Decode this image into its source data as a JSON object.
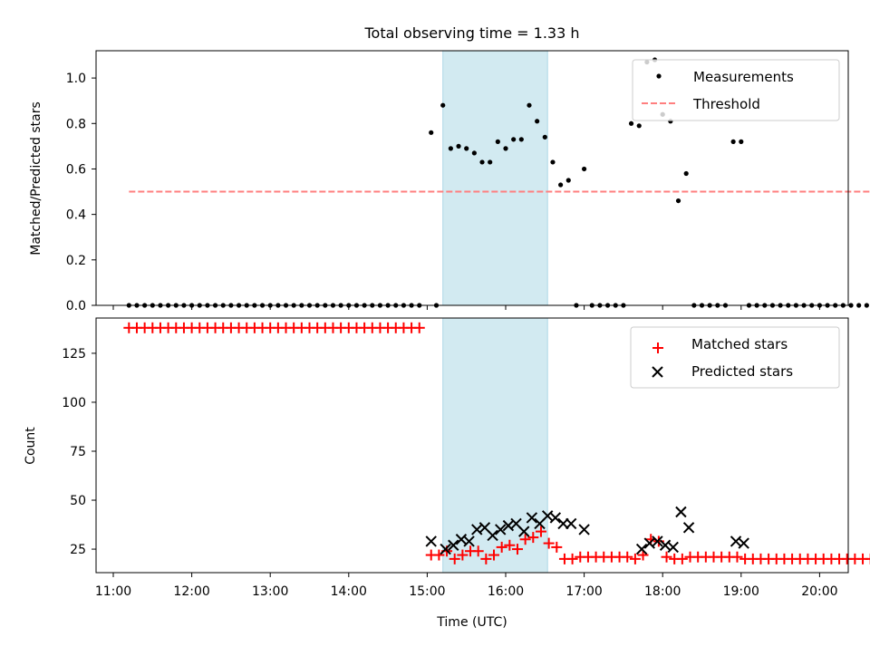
{
  "chart_data": {
    "type": "scatter",
    "title": "Total observing time = 1.33 h",
    "xlabel": "Time (UTC)",
    "x_ticks": [
      "11:00",
      "12:00",
      "13:00",
      "14:00",
      "15:00",
      "16:00",
      "17:00",
      "18:00",
      "19:00",
      "20:00"
    ],
    "shaded_region": {
      "start": "15:12",
      "end": "16:32",
      "color": "#add8e6"
    },
    "panels": [
      {
        "ylabel": "Matched/Predicted stars",
        "ylim": [
          0,
          1.12
        ],
        "y_ticks": [
          "0.0",
          "0.2",
          "0.4",
          "0.6",
          "0.8",
          "1.0"
        ],
        "legend": {
          "placement": "top-right",
          "entries": [
            "Measurements",
            "Threshold"
          ]
        },
        "series": [
          {
            "name": "Measurements",
            "marker": "dot",
            "color": "#000000",
            "values": [
              [
                "11:12",
                0
              ],
              [
                "11:18",
                0
              ],
              [
                "11:24",
                0
              ],
              [
                "11:30",
                0
              ],
              [
                "11:36",
                0
              ],
              [
                "11:42",
                0
              ],
              [
                "11:48",
                0
              ],
              [
                "11:54",
                0
              ],
              [
                "12:00",
                0
              ],
              [
                "12:06",
                0
              ],
              [
                "12:12",
                0
              ],
              [
                "12:18",
                0
              ],
              [
                "12:24",
                0
              ],
              [
                "12:30",
                0
              ],
              [
                "12:36",
                0
              ],
              [
                "12:42",
                0
              ],
              [
                "12:48",
                0
              ],
              [
                "12:54",
                0
              ],
              [
                "13:00",
                0
              ],
              [
                "13:06",
                0
              ],
              [
                "13:12",
                0
              ],
              [
                "13:18",
                0
              ],
              [
                "13:24",
                0
              ],
              [
                "13:30",
                0
              ],
              [
                "13:36",
                0
              ],
              [
                "13:42",
                0
              ],
              [
                "13:48",
                0
              ],
              [
                "13:54",
                0
              ],
              [
                "14:00",
                0
              ],
              [
                "14:06",
                0
              ],
              [
                "14:12",
                0
              ],
              [
                "14:18",
                0
              ],
              [
                "14:24",
                0
              ],
              [
                "14:30",
                0
              ],
              [
                "14:36",
                0
              ],
              [
                "14:42",
                0
              ],
              [
                "14:48",
                0
              ],
              [
                "14:54",
                0
              ],
              [
                "15:03",
                0.76
              ],
              [
                "15:07",
                0
              ],
              [
                "15:12",
                0.88
              ],
              [
                "15:18",
                0.69
              ],
              [
                "15:24",
                0.7
              ],
              [
                "15:30",
                0.69
              ],
              [
                "15:36",
                0.67
              ],
              [
                "15:42",
                0.63
              ],
              [
                "15:48",
                0.63
              ],
              [
                "15:54",
                0.72
              ],
              [
                "16:00",
                0.69
              ],
              [
                "16:06",
                0.73
              ],
              [
                "16:12",
                0.73
              ],
              [
                "16:18",
                0.88
              ],
              [
                "16:24",
                0.81
              ],
              [
                "16:30",
                0.74
              ],
              [
                "16:36",
                0.63
              ],
              [
                "16:42",
                0.53
              ],
              [
                "16:48",
                0.55
              ],
              [
                "16:54",
                0
              ],
              [
                "17:00",
                0.6
              ],
              [
                "17:06",
                0
              ],
              [
                "17:12",
                0
              ],
              [
                "17:18",
                0
              ],
              [
                "17:24",
                0
              ],
              [
                "17:30",
                0
              ],
              [
                "17:36",
                0.8
              ],
              [
                "17:42",
                0.79
              ],
              [
                "17:48",
                1.07
              ],
              [
                "17:54",
                1.08
              ],
              [
                "18:00",
                0.84
              ],
              [
                "18:06",
                0.81
              ],
              [
                "18:12",
                0.46
              ],
              [
                "18:18",
                0.58
              ],
              [
                "18:24",
                0
              ],
              [
                "18:30",
                0
              ],
              [
                "18:36",
                0
              ],
              [
                "18:42",
                0
              ],
              [
                "18:48",
                0
              ],
              [
                "18:54",
                0.72
              ],
              [
                "19:00",
                0.72
              ],
              [
                "19:06",
                0
              ],
              [
                "19:12",
                0
              ],
              [
                "19:18",
                0
              ],
              [
                "19:24",
                0
              ],
              [
                "19:30",
                0
              ],
              [
                "19:36",
                0
              ],
              [
                "19:42",
                0
              ],
              [
                "19:48",
                0
              ],
              [
                "19:54",
                0
              ],
              [
                "20:00",
                0
              ],
              [
                "20:06",
                0
              ],
              [
                "20:12",
                0
              ],
              [
                "20:18",
                0
              ],
              [
                "20:24",
                0
              ],
              [
                "20:30",
                0
              ],
              [
                "20:36",
                0
              ],
              [
                "20:42",
                0
              ],
              [
                "20:48",
                0
              ],
              [
                "20:54",
                0
              ]
            ]
          },
          {
            "name": "Threshold",
            "line": "dashed",
            "color": "#ff7f7f",
            "values": [
              [
                "11:12",
                0.5
              ],
              [
                "20:54",
                0.5
              ]
            ]
          }
        ]
      },
      {
        "ylabel": "Count",
        "ylim": [
          13,
          143
        ],
        "y_ticks": [
          "25",
          "50",
          "75",
          "100",
          "125"
        ],
        "legend": {
          "placement": "top-right",
          "entries": [
            "Matched stars",
            "Predicted stars"
          ]
        },
        "series": [
          {
            "name": "Matched stars",
            "marker": "plus",
            "color": "#ff0000",
            "values": [
              [
                "11:12",
                138
              ],
              [
                "11:18",
                138
              ],
              [
                "11:24",
                138
              ],
              [
                "11:30",
                138
              ],
              [
                "11:36",
                138
              ],
              [
                "11:42",
                138
              ],
              [
                "11:48",
                138
              ],
              [
                "11:54",
                138
              ],
              [
                "12:00",
                138
              ],
              [
                "12:06",
                138
              ],
              [
                "12:12",
                138
              ],
              [
                "12:18",
                138
              ],
              [
                "12:24",
                138
              ],
              [
                "12:30",
                138
              ],
              [
                "12:36",
                138
              ],
              [
                "12:42",
                138
              ],
              [
                "12:48",
                138
              ],
              [
                "12:54",
                138
              ],
              [
                "13:00",
                138
              ],
              [
                "13:06",
                138
              ],
              [
                "13:12",
                138
              ],
              [
                "13:18",
                138
              ],
              [
                "13:24",
                138
              ],
              [
                "13:30",
                138
              ],
              [
                "13:36",
                138
              ],
              [
                "13:42",
                138
              ],
              [
                "13:48",
                138
              ],
              [
                "13:54",
                138
              ],
              [
                "14:00",
                138
              ],
              [
                "14:06",
                138
              ],
              [
                "14:12",
                138
              ],
              [
                "14:18",
                138
              ],
              [
                "14:24",
                138
              ],
              [
                "14:30",
                138
              ],
              [
                "14:36",
                138
              ],
              [
                "14:42",
                138
              ],
              [
                "14:48",
                138
              ],
              [
                "14:54",
                138
              ],
              [
                "15:03",
                22
              ],
              [
                "15:09",
                22
              ],
              [
                "15:15",
                24
              ],
              [
                "15:21",
                20
              ],
              [
                "15:27",
                22
              ],
              [
                "15:33",
                24
              ],
              [
                "15:39",
                24
              ],
              [
                "15:45",
                20
              ],
              [
                "15:51",
                22
              ],
              [
                "15:57",
                26
              ],
              [
                "16:03",
                27
              ],
              [
                "16:09",
                25
              ],
              [
                "16:15",
                30
              ],
              [
                "16:21",
                31
              ],
              [
                "16:27",
                34
              ],
              [
                "16:33",
                28
              ],
              [
                "16:39",
                26
              ],
              [
                "16:45",
                20
              ],
              [
                "16:51",
                20
              ],
              [
                "16:57",
                21
              ],
              [
                "17:03",
                21
              ],
              [
                "17:09",
                21
              ],
              [
                "17:15",
                21
              ],
              [
                "17:21",
                21
              ],
              [
                "17:27",
                21
              ],
              [
                "17:33",
                21
              ],
              [
                "17:39",
                20
              ],
              [
                "17:45",
                22
              ],
              [
                "17:51",
                30
              ],
              [
                "17:57",
                29
              ],
              [
                "18:03",
                21
              ],
              [
                "18:09",
                20
              ],
              [
                "18:15",
                20
              ],
              [
                "18:21",
                21
              ],
              [
                "18:27",
                21
              ],
              [
                "18:33",
                21
              ],
              [
                "18:39",
                21
              ],
              [
                "18:45",
                21
              ],
              [
                "18:51",
                21
              ],
              [
                "18:57",
                21
              ],
              [
                "19:03",
                20
              ],
              [
                "19:09",
                20
              ],
              [
                "19:15",
                20
              ],
              [
                "19:21",
                20
              ],
              [
                "19:27",
                20
              ],
              [
                "19:33",
                20
              ],
              [
                "19:39",
                20
              ],
              [
                "19:45",
                20
              ],
              [
                "19:51",
                20
              ],
              [
                "19:57",
                20
              ],
              [
                "20:03",
                20
              ],
              [
                "20:09",
                20
              ],
              [
                "20:15",
                20
              ],
              [
                "20:21",
                20
              ],
              [
                "20:27",
                20
              ],
              [
                "20:33",
                20
              ],
              [
                "20:39",
                20
              ],
              [
                "20:45",
                20
              ],
              [
                "20:51",
                20
              ]
            ]
          },
          {
            "name": "Predicted stars",
            "marker": "x",
            "color": "#000000",
            "values": [
              [
                "15:03",
                29
              ],
              [
                "15:14",
                25
              ],
              [
                "15:20",
                27
              ],
              [
                "15:26",
                30
              ],
              [
                "15:32",
                29
              ],
              [
                "15:38",
                35
              ],
              [
                "15:44",
                36
              ],
              [
                "15:50",
                32
              ],
              [
                "15:56",
                35
              ],
              [
                "16:02",
                37
              ],
              [
                "16:08",
                38
              ],
              [
                "16:14",
                34
              ],
              [
                "16:20",
                41
              ],
              [
                "16:26",
                38
              ],
              [
                "16:32",
                42
              ],
              [
                "16:38",
                41
              ],
              [
                "16:44",
                38
              ],
              [
                "16:50",
                38
              ],
              [
                "17:00",
                35
              ],
              [
                "17:44",
                25
              ],
              [
                "17:50",
                28
              ],
              [
                "17:56",
                29
              ],
              [
                "18:02",
                27
              ],
              [
                "18:08",
                26
              ],
              [
                "18:14",
                44
              ],
              [
                "18:20",
                36
              ],
              [
                "18:56",
                29
              ],
              [
                "19:02",
                28
              ]
            ]
          }
        ]
      }
    ]
  }
}
